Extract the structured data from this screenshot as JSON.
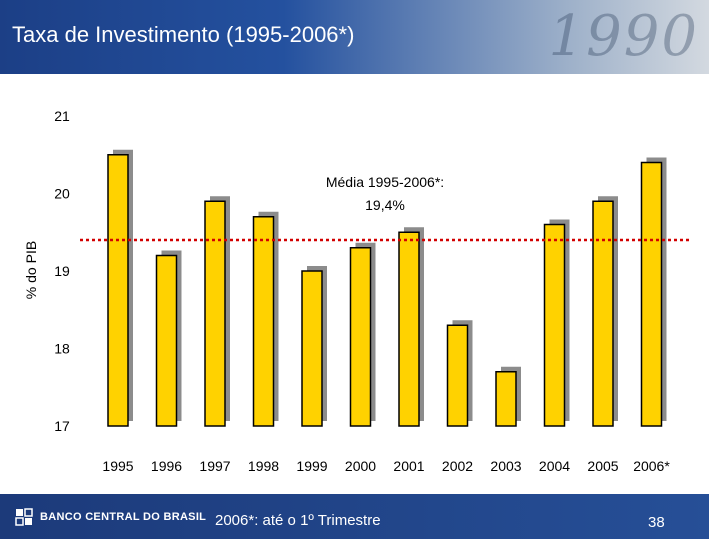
{
  "slide": {
    "title": "Taxa de Investimento (1995-2006*)",
    "header_deco_text": "1990",
    "footnote": "2006*: até o 1º Trimestre",
    "page_number": "38",
    "logo_text": "BANCO CENTRAL DO BRASIL"
  },
  "colors": {
    "header": "#24519f",
    "bar_fill": "#ffd200",
    "bar_outline": "#000000",
    "bar_shadow": "#8c8c8c",
    "average_line": "#d20000",
    "footer": "#1c3a7a"
  },
  "chart_data": {
    "type": "bar",
    "ylabel": "% do PIB",
    "xlabel": "",
    "ylim": [
      17,
      21
    ],
    "yticks": [
      21,
      20,
      19,
      18,
      17
    ],
    "categories": [
      "1995",
      "1996",
      "1997",
      "1998",
      "1999",
      "2000",
      "2001",
      "2002",
      "2003",
      "2004",
      "2005",
      "2006*"
    ],
    "values": [
      20.5,
      19.2,
      19.9,
      19.7,
      19.0,
      19.3,
      19.5,
      18.3,
      17.7,
      19.6,
      19.9,
      20.4
    ],
    "average": {
      "label": "Média 1995-2006*:",
      "value_label": "19,4%",
      "value": 19.4
    },
    "grid": false,
    "legend": "none"
  }
}
